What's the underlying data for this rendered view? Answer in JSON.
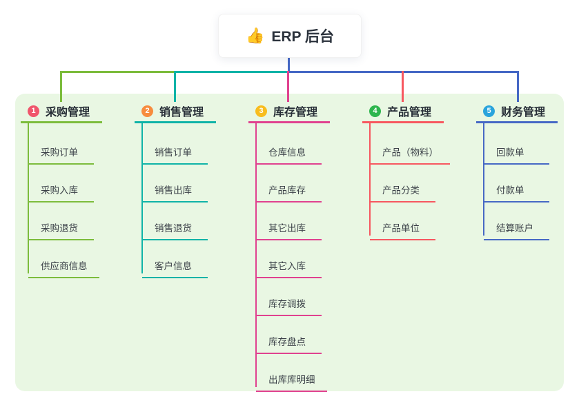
{
  "root": {
    "icon": "👍",
    "title": "ERP 后台"
  },
  "colors": {
    "panel_bg": "#e9f7e3",
    "root_stem": "#4668c5",
    "bus_segments": [
      "#7cbc3c",
      "#0fb3a7",
      "#4668c5"
    ]
  },
  "branches": [
    {
      "badge": "1",
      "title": "采购管理",
      "line_color": "#7cbc3c",
      "badge_color": "#f0566c",
      "items": [
        "采购订单",
        "采购入库",
        "采购退货",
        "供应商信息"
      ]
    },
    {
      "badge": "2",
      "title": "销售管理",
      "line_color": "#0fb3a7",
      "badge_color": "#f78c3e",
      "items": [
        "销售订单",
        "销售出库",
        "销售退货",
        "客户信息"
      ]
    },
    {
      "badge": "3",
      "title": "库存管理",
      "line_color": "#e0418f",
      "badge_color": "#f8bd1e",
      "items": [
        "仓库信息",
        "产品库存",
        "其它出库",
        "其它入库",
        "库存调拨",
        "库存盘点",
        "出库库明细"
      ]
    },
    {
      "badge": "4",
      "title": "产品管理",
      "line_color": "#f7575f",
      "badge_color": "#2db54d",
      "items": [
        "产品（物料）",
        "产品分类",
        "产品单位"
      ]
    },
    {
      "badge": "5",
      "title": "财务管理",
      "line_color": "#4668c5",
      "badge_color": "#2aa4dc",
      "items": [
        "回款单",
        "付款单",
        "结算账户"
      ]
    }
  ]
}
